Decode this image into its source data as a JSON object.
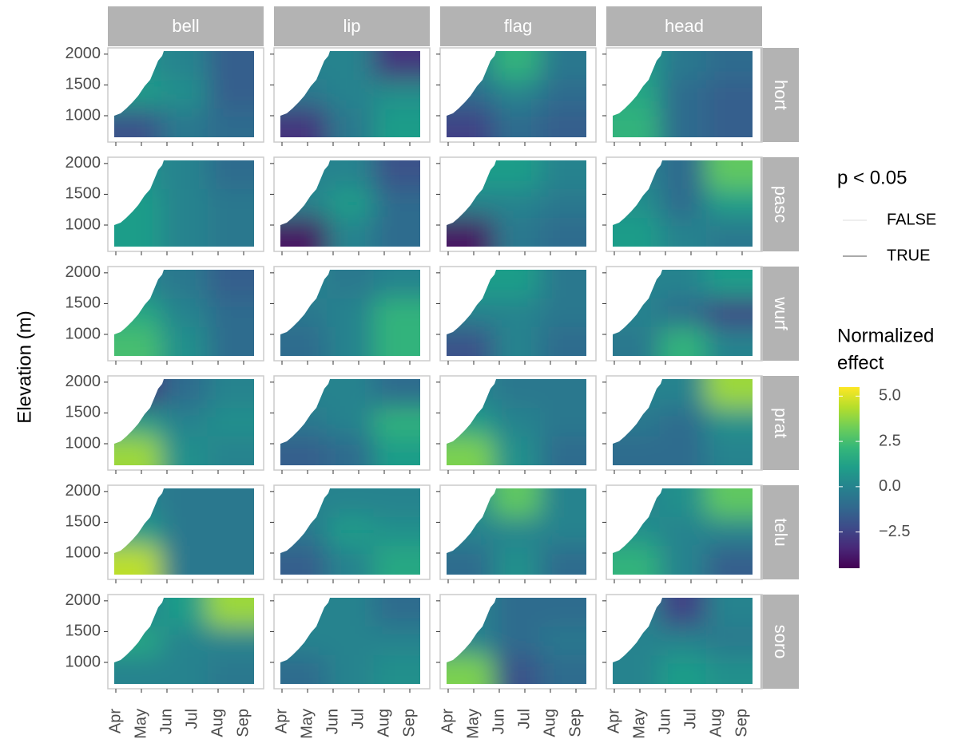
{
  "chart_data": {
    "type": "faceted-contour",
    "y_label": "Elevation (m)",
    "columns": [
      "bell",
      "lip",
      "flag",
      "head"
    ],
    "rows": [
      "hort",
      "pasc",
      "wurf",
      "prat",
      "telu",
      "soro"
    ],
    "categories": [
      "Apr",
      "May",
      "Jun",
      "Jul",
      "Aug",
      "Sep"
    ],
    "ylim": [
      650,
      2050
    ],
    "yticks": [
      1000,
      1500,
      2000
    ],
    "legend_line_title": "p < 0.05",
    "legend_line_entries": [
      "FALSE",
      "TRUE"
    ],
    "legend_fill_title": [
      "Normalized",
      "effect"
    ],
    "clim": [
      -4.5,
      5.5
    ],
    "cticks": [
      {
        "value": 5,
        "label": "5.0"
      },
      2.5,
      {
        "value": 0,
        "label": "0.0"
      },
      {
        "value": -2.5,
        "label": "−2.5"
      }
    ],
    "colormap": [
      "#440154",
      "#482878",
      "#3e4a89",
      "#31688e",
      "#26828e",
      "#1f9e89",
      "#35b779",
      "#6ece58",
      "#b5de2b",
      "#fde725"
    ],
    "effect": [
      [
        [
          [
            0.5,
            0,
            -1.5
          ],
          [
            1,
            0.5,
            -1.5
          ],
          [
            -2,
            -0.5,
            -1
          ]
        ],
        [
          [
            0,
            0,
            -3
          ],
          [
            -0.5,
            0,
            0.5
          ],
          [
            -3,
            -0.5,
            1
          ]
        ],
        [
          [
            0,
            2,
            -0.5
          ],
          [
            -1,
            0,
            -1
          ],
          [
            -2.5,
            -1,
            -1.5
          ]
        ],
        [
          [
            1,
            -0.5,
            -1
          ],
          [
            1.5,
            -1,
            -1.5
          ],
          [
            2,
            -1,
            -1.5
          ]
        ]
      ],
      [
        [
          [
            0.5,
            0,
            -1
          ],
          [
            1,
            0,
            -0.5
          ],
          [
            1,
            0,
            -0.5
          ]
        ],
        [
          [
            0,
            0,
            -2
          ],
          [
            0,
            1,
            -1
          ],
          [
            -4,
            0,
            -1
          ]
        ],
        [
          [
            1,
            1,
            0
          ],
          [
            0,
            0,
            -0.5
          ],
          [
            -4,
            -0.5,
            -1
          ]
        ],
        [
          [
            0,
            -1,
            3
          ],
          [
            0.5,
            -1,
            1
          ],
          [
            1,
            0,
            -0.5
          ]
        ]
      ],
      [
        [
          [
            0,
            -0.5,
            -1.5
          ],
          [
            1.5,
            0,
            -1
          ],
          [
            2.5,
            0.5,
            -1
          ]
        ],
        [
          [
            0,
            -0.5,
            0
          ],
          [
            -0.5,
            0,
            2
          ],
          [
            -1,
            0,
            2
          ]
        ],
        [
          [
            1,
            1,
            -0.5
          ],
          [
            0,
            0,
            -0.5
          ],
          [
            -2,
            0,
            -1
          ]
        ],
        [
          [
            0,
            0,
            1
          ],
          [
            0,
            -1,
            -2.5
          ],
          [
            -0.5,
            2,
            0
          ]
        ]
      ],
      [
        [
          [
            -3,
            -1,
            0
          ],
          [
            1,
            0,
            0.5
          ],
          [
            4,
            0.5,
            0
          ]
        ],
        [
          [
            0,
            0,
            -1
          ],
          [
            -0.5,
            0,
            2
          ],
          [
            -1.5,
            -1,
            1
          ]
        ],
        [
          [
            0,
            -0.5,
            -0.5
          ],
          [
            1,
            0,
            -0.5
          ],
          [
            3.5,
            0.5,
            -1
          ]
        ],
        [
          [
            0,
            0,
            4
          ],
          [
            -0.5,
            -1,
            0.5
          ],
          [
            -1,
            -1,
            0
          ]
        ]
      ],
      [
        [
          [
            0,
            -0.5,
            -0.5
          ],
          [
            1,
            -0.5,
            -0.5
          ],
          [
            4.5,
            -0.5,
            -0.5
          ]
        ],
        [
          [
            0,
            0,
            0
          ],
          [
            -0.5,
            1,
            0.5
          ],
          [
            -1.5,
            0,
            1.5
          ]
        ],
        [
          [
            0.5,
            3,
            0
          ],
          [
            0,
            0,
            0
          ],
          [
            -1,
            0.5,
            -1
          ]
        ],
        [
          [
            0,
            0.5,
            3
          ],
          [
            0.5,
            0,
            0
          ],
          [
            2,
            0,
            -1.5
          ]
        ]
      ],
      [
        [
          [
            0,
            1,
            4
          ],
          [
            1.5,
            0,
            0
          ],
          [
            0,
            0,
            -0.5
          ]
        ],
        [
          [
            0,
            0,
            -1
          ],
          [
            0,
            0,
            0
          ],
          [
            -1,
            0,
            0.5
          ]
        ],
        [
          [
            0,
            -1,
            -1
          ],
          [
            0,
            -1,
            -0.5
          ],
          [
            3.5,
            -2,
            -1
          ]
        ],
        [
          [
            0,
            -2.5,
            0
          ],
          [
            0,
            0,
            -0.5
          ],
          [
            0,
            1,
            0.5
          ]
        ]
      ]
    ]
  }
}
